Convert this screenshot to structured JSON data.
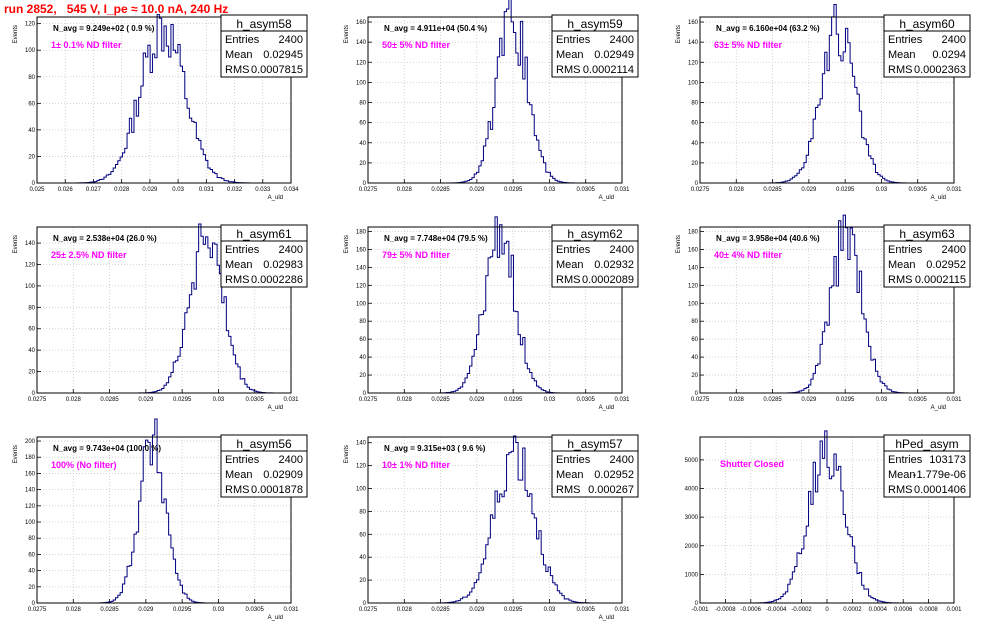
{
  "run_title": "run 2852,   545 V, I_pe ≈ 10.0 nA, 240 Hz",
  "chart_data": [
    {
      "type": "histogram",
      "name": "h_asym58",
      "navg_label": "N_avg = 9.249e+02 ( 0.9 %)",
      "filter_label": "1± 0.1% ND filter",
      "stats": {
        "entries": "2400",
        "mean": "0.02945",
        "rms": "0.0007815"
      },
      "stat_labels": {
        "entries": "Entries",
        "mean": "Mean",
        "rms": "RMS"
      },
      "ylabel": "Events",
      "xlabel": "A_uld",
      "xlim": [
        0.025,
        0.034
      ],
      "ylim": [
        0,
        125
      ],
      "xticks": [
        "0.025",
        "0.026",
        "0.027",
        "0.028",
        "0.029",
        "0.03",
        "0.031",
        "0.032",
        "0.033",
        "0.034"
      ],
      "yticks": [
        "0",
        "20",
        "40",
        "60",
        "80",
        "100",
        "120"
      ],
      "mean": 0.02945,
      "rms": 0.0007815,
      "peak": 118
    },
    {
      "type": "histogram",
      "name": "h_asym59",
      "navg_label": "N_avg = 4.911e+04 (50.4 %)",
      "filter_label": "50± 5% ND filter",
      "stats": {
        "entries": "2400",
        "mean": "0.02949",
        "rms": "0.0002114"
      },
      "stat_labels": {
        "entries": "Entries",
        "mean": "Mean",
        "rms": "RMS"
      },
      "ylabel": "Events",
      "xlabel": "A_uld",
      "xlim": [
        0.0275,
        0.031
      ],
      "ylim": [
        0,
        165
      ],
      "xticks": [
        "0.0275",
        "0.028",
        "0.0285",
        "0.029",
        "0.0295",
        "0.03",
        "0.0305",
        "0.031"
      ],
      "yticks": [
        "0",
        "20",
        "40",
        "60",
        "80",
        "100",
        "120",
        "140",
        "160"
      ],
      "mean": 0.02949,
      "rms": 0.0002114,
      "peak": 160
    },
    {
      "type": "histogram",
      "name": "h_asym60",
      "navg_label": "N_avg = 6.160e+04 (63.2 %)",
      "filter_label": "63± 5% ND filter",
      "stats": {
        "entries": "2400",
        "mean": "0.0294",
        "rms": "0.0002363"
      },
      "stat_labels": {
        "entries": "Entries",
        "mean": "Mean",
        "rms": "RMS"
      },
      "ylabel": "Events",
      "xlabel": "A_uld",
      "xlim": [
        0.0275,
        0.031
      ],
      "ylim": [
        0,
        165
      ],
      "xticks": [
        "0.0275",
        "0.028",
        "0.0285",
        "0.029",
        "0.0295",
        "0.03",
        "0.0305",
        "0.031"
      ],
      "yticks": [
        "0",
        "20",
        "40",
        "60",
        "80",
        "100",
        "120",
        "140",
        "160"
      ],
      "mean": 0.0294,
      "rms": 0.0002363,
      "peak": 150
    },
    {
      "type": "histogram",
      "name": "h_asym61",
      "navg_label": "N_avg = 2.538e+04 (26.0 %)",
      "filter_label": "25± 2.5% ND filter",
      "stats": {
        "entries": "2400",
        "mean": "0.02983",
        "rms": "0.0002286"
      },
      "stat_labels": {
        "entries": "Entries",
        "mean": "Mean",
        "rms": "RMS"
      },
      "ylabel": "Events",
      "xlabel": "A_uld",
      "xlim": [
        0.0275,
        0.031
      ],
      "ylim": [
        0,
        155
      ],
      "xticks": [
        "0.0275",
        "0.028",
        "0.0285",
        "0.029",
        "0.0295",
        "0.03",
        "0.0305",
        "0.031"
      ],
      "yticks": [
        "0",
        "20",
        "40",
        "60",
        "80",
        "100",
        "120",
        "140"
      ],
      "mean": 0.02983,
      "rms": 0.0002286,
      "peak": 150
    },
    {
      "type": "histogram",
      "name": "h_asym62",
      "navg_label": "N_avg = 7.748e+04 (79.5 %)",
      "filter_label": "79± 5% ND filter",
      "stats": {
        "entries": "2400",
        "mean": "0.02932",
        "rms": "0.0002089"
      },
      "stat_labels": {
        "entries": "Entries",
        "mean": "Mean",
        "rms": "RMS"
      },
      "ylabel": "Events",
      "xlabel": "A_uld",
      "xlim": [
        0.0275,
        0.031
      ],
      "ylim": [
        0,
        185
      ],
      "xticks": [
        "0.0275",
        "0.028",
        "0.0285",
        "0.029",
        "0.0295",
        "0.03",
        "0.0305",
        "0.031"
      ],
      "yticks": [
        "0",
        "20",
        "40",
        "60",
        "80",
        "100",
        "120",
        "140",
        "160",
        "180"
      ],
      "mean": 0.02932,
      "rms": 0.0002089,
      "peak": 178
    },
    {
      "type": "histogram",
      "name": "h_asym63",
      "navg_label": "N_avg = 3.958e+04 (40.6 %)",
      "filter_label": "40± 4% ND filter",
      "stats": {
        "entries": "2400",
        "mean": "0.02952",
        "rms": "0.0002115"
      },
      "stat_labels": {
        "entries": "Entries",
        "mean": "Mean",
        "rms": "RMS"
      },
      "ylabel": "Events",
      "xlabel": "A_uld",
      "xlim": [
        0.0275,
        0.031
      ],
      "ylim": [
        0,
        185
      ],
      "xticks": [
        "0.0275",
        "0.028",
        "0.0285",
        "0.029",
        "0.0295",
        "0.03",
        "0.0305",
        "0.031"
      ],
      "yticks": [
        "0",
        "20",
        "40",
        "60",
        "80",
        "100",
        "120",
        "140",
        "160",
        "180"
      ],
      "mean": 0.02952,
      "rms": 0.0002115,
      "peak": 178
    },
    {
      "type": "histogram",
      "name": "h_asym56",
      "navg_label": "N_avg = 9.743e+04 (100.0 %)",
      "filter_label": "100% (No filter)",
      "stats": {
        "entries": "2400",
        "mean": "0.02909",
        "rms": "0.0001878"
      },
      "stat_labels": {
        "entries": "Entries",
        "mean": "Mean",
        "rms": "RMS"
      },
      "ylabel": "Events",
      "xlabel": "A_uld",
      "xlim": [
        0.0275,
        0.031
      ],
      "ylim": [
        0,
        205
      ],
      "xticks": [
        "0.0275",
        "0.028",
        "0.0285",
        "0.029",
        "0.0295",
        "0.03",
        "0.0305",
        "0.031"
      ],
      "yticks": [
        "0",
        "20",
        "40",
        "60",
        "80",
        "100",
        "120",
        "140",
        "160",
        "180",
        "200"
      ],
      "mean": 0.02909,
      "rms": 0.0001878,
      "peak": 198
    },
    {
      "type": "histogram",
      "name": "h_asym57",
      "navg_label": "N_avg = 9.315e+03 ( 9.6 %)",
      "filter_label": "10± 1% ND filter",
      "stats": {
        "entries": "2400",
        "mean": "0.02952",
        "rms": "0.000267"
      },
      "stat_labels": {
        "entries": "Entries",
        "mean": "Mean",
        "rms": "RMS"
      },
      "ylabel": "Events",
      "xlabel": "A_uld",
      "xlim": [
        0.0275,
        0.031
      ],
      "ylim": [
        0,
        145
      ],
      "xticks": [
        "0.0275",
        "0.028",
        "0.0285",
        "0.029",
        "0.0295",
        "0.03",
        "0.0305",
        "0.031"
      ],
      "yticks": [
        "0",
        "20",
        "40",
        "60",
        "80",
        "100",
        "120",
        "140"
      ],
      "mean": 0.02952,
      "rms": 0.000267,
      "peak": 135
    },
    {
      "type": "histogram",
      "name": "hPed_asym",
      "navg_label": "",
      "filter_label": "Shutter Closed",
      "stats": {
        "entries": "103173",
        "mean": "-1.779e-06",
        "rms": "0.0001406"
      },
      "stat_labels": {
        "entries": "Entries",
        "mean": "Mean",
        "rms": "RMS"
      },
      "ylabel": "",
      "xlabel": "",
      "xlim": [
        -0.001,
        0.001
      ],
      "ylim": [
        0,
        5800
      ],
      "xticks": [
        "-0.001",
        "-0.0008",
        "-0.0006",
        "-0.0004",
        "-0.0002",
        "0",
        "0.0002",
        "0.0004",
        "0.0006",
        "0.0008",
        "0.001"
      ],
      "yticks": [
        "0",
        "1000",
        "2000",
        "3000",
        "4000",
        "5000"
      ],
      "mean": -1.779e-06,
      "rms": 0.0001406,
      "peak": 5450
    }
  ]
}
